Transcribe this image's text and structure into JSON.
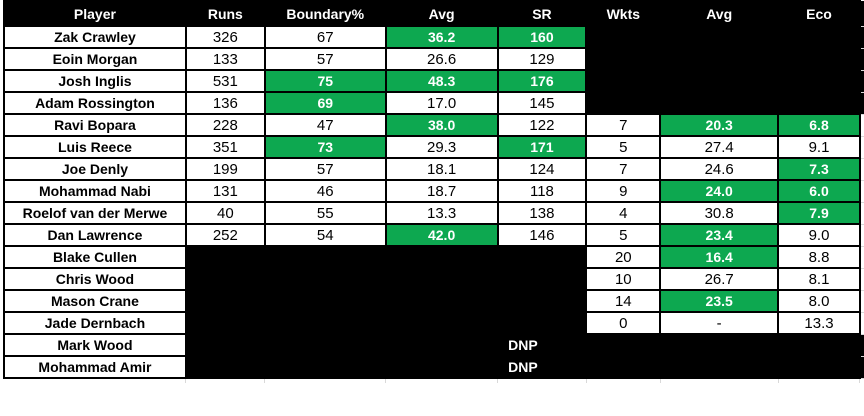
{
  "colors": {
    "highlight_green": "#0da850",
    "filled_black": "#000000",
    "grid_gray": "#d9d9d9",
    "cell_background": "#ffffff",
    "cell_text": "#000000",
    "highlight_text": "#ffffff"
  },
  "chart_data": {
    "type": "table",
    "columns": [
      "Player",
      "Runs",
      "Boundary%",
      "Avg",
      "SR",
      "Wkts",
      "Avg",
      "Eco"
    ],
    "legend_note": "green = highlighted stat cell, black = no data / blanked out",
    "rows": [
      {
        "player": "Zak Crawley",
        "edge": "black",
        "cells": [
          {
            "v": "326",
            "style": "plain"
          },
          {
            "v": "67",
            "style": "plain"
          },
          {
            "v": "36.2",
            "style": "green"
          },
          {
            "v": "160",
            "style": "green"
          },
          {
            "style": "black"
          },
          {
            "style": "black"
          },
          {
            "style": "black"
          }
        ]
      },
      {
        "player": "Eoin Morgan",
        "edge": "black",
        "cells": [
          {
            "v": "133",
            "style": "plain"
          },
          {
            "v": "57",
            "style": "plain"
          },
          {
            "v": "26.6",
            "style": "plain"
          },
          {
            "v": "129",
            "style": "plain"
          },
          {
            "style": "black"
          },
          {
            "style": "black"
          },
          {
            "style": "black"
          }
        ]
      },
      {
        "player": "Josh Inglis",
        "edge": "black",
        "cells": [
          {
            "v": "531",
            "style": "plain"
          },
          {
            "v": "75",
            "style": "green"
          },
          {
            "v": "48.3",
            "style": "green"
          },
          {
            "v": "176",
            "style": "green"
          },
          {
            "style": "black"
          },
          {
            "style": "black"
          },
          {
            "style": "black"
          }
        ]
      },
      {
        "player": "Adam Rossington",
        "edge": "black",
        "cells": [
          {
            "v": "136",
            "style": "plain"
          },
          {
            "v": "69",
            "style": "green"
          },
          {
            "v": "17.0",
            "style": "plain"
          },
          {
            "v": "145",
            "style": "plain"
          },
          {
            "style": "black"
          },
          {
            "style": "black"
          },
          {
            "style": "black"
          }
        ]
      },
      {
        "player": "Ravi Bopara",
        "edge": "white",
        "cells": [
          {
            "v": "228",
            "style": "plain"
          },
          {
            "v": "47",
            "style": "plain"
          },
          {
            "v": "38.0",
            "style": "green"
          },
          {
            "v": "122",
            "style": "plain"
          },
          {
            "v": "7",
            "style": "plain"
          },
          {
            "v": "20.3",
            "style": "green"
          },
          {
            "v": "6.8",
            "style": "green"
          }
        ]
      },
      {
        "player": "Luis Reece",
        "edge": "white",
        "cells": [
          {
            "v": "351",
            "style": "plain"
          },
          {
            "v": "73",
            "style": "green"
          },
          {
            "v": "29.3",
            "style": "plain"
          },
          {
            "v": "171",
            "style": "green"
          },
          {
            "v": "5",
            "style": "plain"
          },
          {
            "v": "27.4",
            "style": "plain"
          },
          {
            "v": "9.1",
            "style": "plain"
          }
        ]
      },
      {
        "player": "Joe Denly",
        "edge": "white",
        "cells": [
          {
            "v": "199",
            "style": "plain"
          },
          {
            "v": "57",
            "style": "plain"
          },
          {
            "v": "18.1",
            "style": "plain"
          },
          {
            "v": "124",
            "style": "plain"
          },
          {
            "v": "7",
            "style": "plain"
          },
          {
            "v": "24.6",
            "style": "plain"
          },
          {
            "v": "7.3",
            "style": "green"
          }
        ]
      },
      {
        "player": "Mohammad Nabi",
        "edge": "white",
        "cells": [
          {
            "v": "131",
            "style": "plain"
          },
          {
            "v": "46",
            "style": "plain"
          },
          {
            "v": "18.7",
            "style": "plain"
          },
          {
            "v": "118",
            "style": "plain"
          },
          {
            "v": "9",
            "style": "plain"
          },
          {
            "v": "24.0",
            "style": "green"
          },
          {
            "v": "6.0",
            "style": "green"
          }
        ]
      },
      {
        "player": "Roelof van der Merwe",
        "edge": "white",
        "cells": [
          {
            "v": "40",
            "style": "plain"
          },
          {
            "v": "55",
            "style": "plain"
          },
          {
            "v": "13.3",
            "style": "plain"
          },
          {
            "v": "138",
            "style": "plain"
          },
          {
            "v": "4",
            "style": "plain"
          },
          {
            "v": "30.8",
            "style": "plain"
          },
          {
            "v": "7.9",
            "style": "green"
          }
        ]
      },
      {
        "player": "Dan Lawrence",
        "edge": "white",
        "cells": [
          {
            "v": "252",
            "style": "plain"
          },
          {
            "v": "54",
            "style": "plain"
          },
          {
            "v": "42.0",
            "style": "green"
          },
          {
            "v": "146",
            "style": "plain"
          },
          {
            "v": "5",
            "style": "plain"
          },
          {
            "v": "23.4",
            "style": "green"
          },
          {
            "v": "9.0",
            "style": "plain"
          }
        ]
      },
      {
        "player": "Blake Cullen",
        "edge": "white",
        "cells": [
          {
            "style": "black"
          },
          {
            "style": "black"
          },
          {
            "style": "black"
          },
          {
            "style": "black"
          },
          {
            "v": "20",
            "style": "plain"
          },
          {
            "v": "16.4",
            "style": "green"
          },
          {
            "v": "8.8",
            "style": "plain"
          }
        ]
      },
      {
        "player": "Chris Wood",
        "edge": "white",
        "cells": [
          {
            "style": "black"
          },
          {
            "style": "black"
          },
          {
            "style": "black"
          },
          {
            "style": "black"
          },
          {
            "v": "10",
            "style": "plain"
          },
          {
            "v": "26.7",
            "style": "plain"
          },
          {
            "v": "8.1",
            "style": "plain"
          }
        ]
      },
      {
        "player": "Mason Crane",
        "edge": "white",
        "cells": [
          {
            "style": "black"
          },
          {
            "style": "black"
          },
          {
            "style": "black"
          },
          {
            "style": "black"
          },
          {
            "v": "14",
            "style": "plain"
          },
          {
            "v": "23.5",
            "style": "green"
          },
          {
            "v": "8.0",
            "style": "plain"
          }
        ]
      },
      {
        "player": "Jade Dernbach",
        "edge": "white",
        "cells": [
          {
            "style": "black"
          },
          {
            "style": "black"
          },
          {
            "style": "black"
          },
          {
            "style": "black"
          },
          {
            "v": "0",
            "style": "plain"
          },
          {
            "v": "-",
            "style": "plain"
          },
          {
            "v": "13.3",
            "style": "plain"
          }
        ]
      },
      {
        "player": "Mark Wood",
        "edge": "black",
        "cells": [
          {
            "v": "DNP",
            "style": "dnp",
            "span": 7
          }
        ]
      },
      {
        "player": "Mohammad Amir",
        "edge": "black",
        "cells": [
          {
            "v": "DNP",
            "style": "dnp",
            "span": 7
          }
        ]
      }
    ]
  }
}
